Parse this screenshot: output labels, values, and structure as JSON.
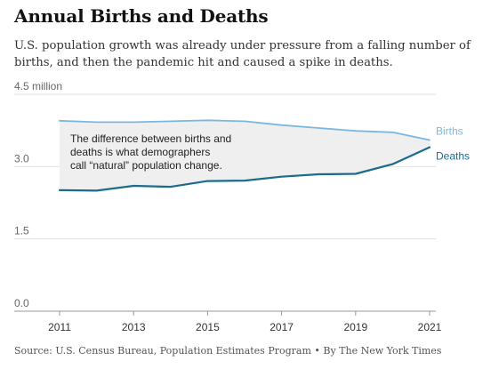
{
  "header": {
    "title": "Annual Births and Deaths",
    "subtitle": "U.S. population growth was already under pressure from a falling number of births, and then the pandemic hit and caused a spike in deaths."
  },
  "footer": {
    "source": "Source: U.S. Census Bureau, Population Estimates Program • By The New York Times"
  },
  "chart_data": {
    "type": "line",
    "title": "Annual Births and Deaths",
    "subtitle": "U.S. population growth was already under pressure from a falling number of births, and then the pandemic hit and caused a spike in deaths.",
    "x": [
      2011,
      2012,
      2013,
      2014,
      2015,
      2016,
      2017,
      2018,
      2019,
      2020,
      2021
    ],
    "xticks": [
      2011,
      2013,
      2015,
      2017,
      2019,
      2021
    ],
    "xtick_labels": [
      "2011",
      "2013",
      "2015",
      "2017",
      "2019",
      "2021"
    ],
    "ylim": [
      0,
      4.5
    ],
    "yticks": [
      0,
      1.5,
      3.0,
      4.5
    ],
    "ytick_labels": [
      "0.0",
      "1.5",
      "3.0",
      "4.5 million"
    ],
    "grid": true,
    "series": [
      {
        "name": "Births",
        "color": "#7ab8e0",
        "values": [
          3.95,
          3.92,
          3.92,
          3.94,
          3.96,
          3.94,
          3.86,
          3.8,
          3.74,
          3.71,
          3.55
        ]
      },
      {
        "name": "Deaths",
        "color": "#1b6b8c",
        "values": [
          2.51,
          2.5,
          2.6,
          2.58,
          2.7,
          2.71,
          2.79,
          2.84,
          2.85,
          3.05,
          3.4
        ]
      }
    ],
    "annotation": "The difference between births and deaths is what demographers call “natural” population change.",
    "fill_between_color": "#efefef"
  }
}
